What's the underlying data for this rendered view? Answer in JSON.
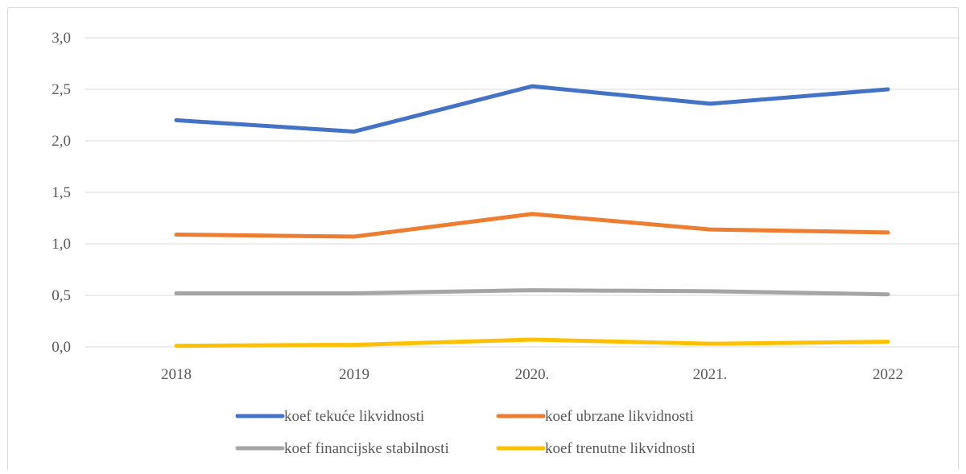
{
  "chart_data": {
    "type": "line",
    "title": "",
    "xlabel": "",
    "ylabel": "",
    "categories": [
      "2018",
      "2019",
      "2020.",
      "2021.",
      "2022"
    ],
    "ylim": [
      0,
      3.0
    ],
    "yticks": [
      "0,0",
      "0,5",
      "1,0",
      "1,5",
      "2,0",
      "2,5",
      "3,0"
    ],
    "grid": "horizontal",
    "legend_position": "bottom",
    "series": [
      {
        "name": "koef tekuće likvidnosti",
        "color": "#4472c4",
        "values": [
          2.2,
          2.09,
          2.53,
          2.36,
          2.5
        ]
      },
      {
        "name": "koef ubrzane likvidnosti",
        "color": "#ed7d31",
        "values": [
          1.09,
          1.07,
          1.29,
          1.14,
          1.11
        ]
      },
      {
        "name": "koef financijske stabilnosti",
        "color": "#a5a5a5",
        "values": [
          0.52,
          0.52,
          0.55,
          0.54,
          0.51
        ]
      },
      {
        "name": "koef trenutne likvidnosti",
        "color": "#ffc000",
        "values": [
          0.01,
          0.02,
          0.07,
          0.03,
          0.05
        ]
      }
    ]
  }
}
